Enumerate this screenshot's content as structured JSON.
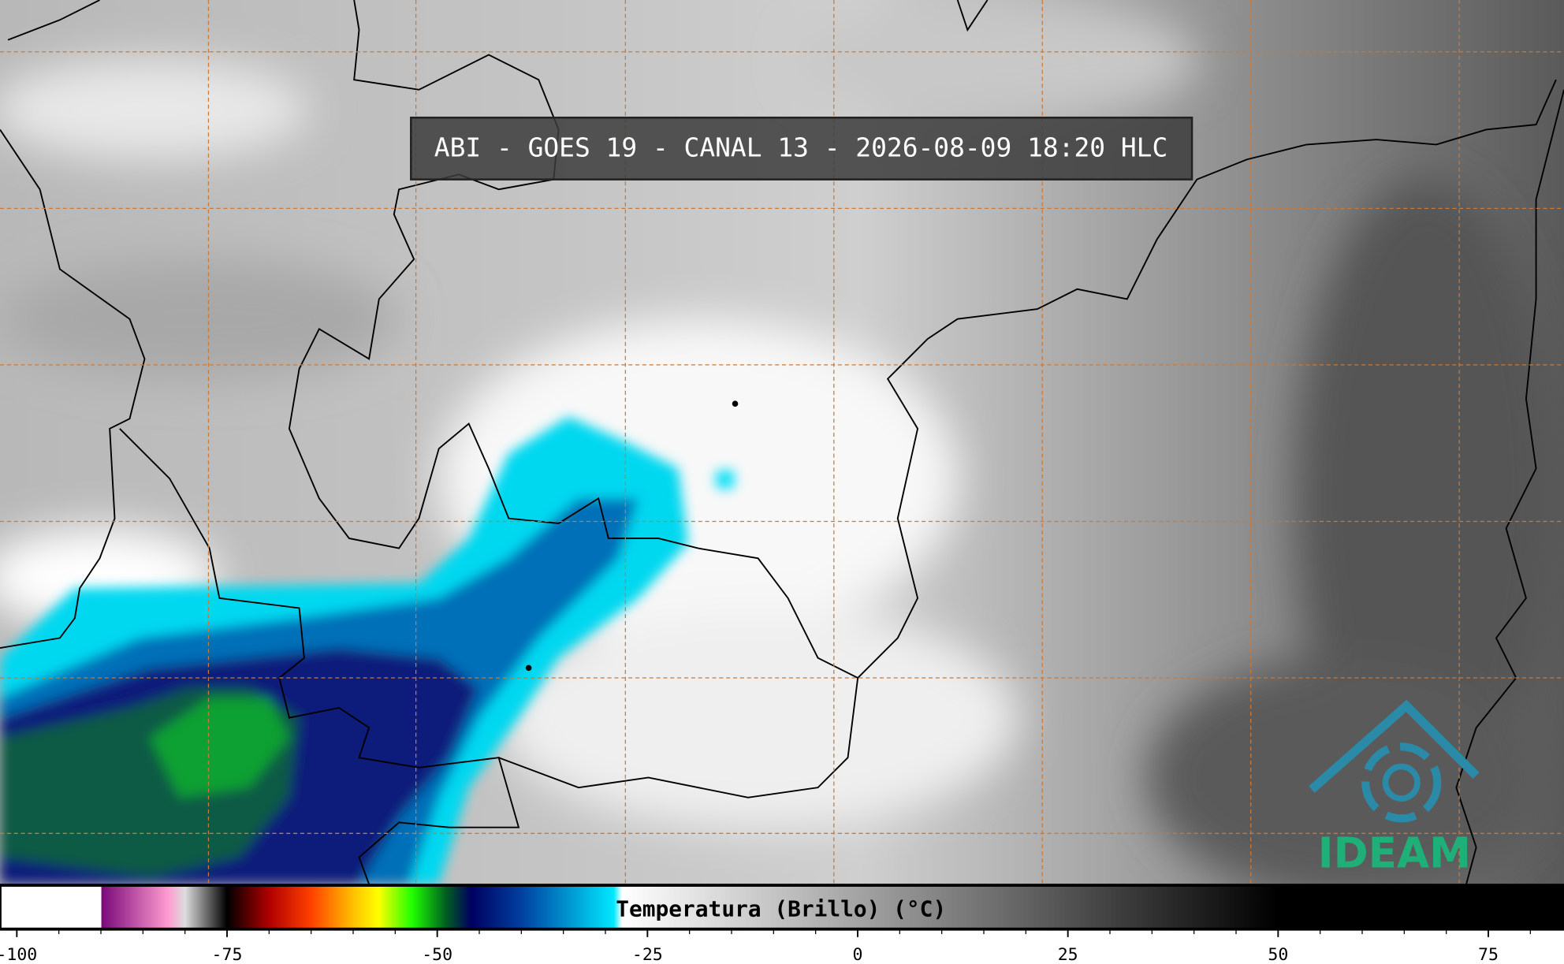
{
  "header": {
    "title": "ABI - GOES 19 - CANAL 13 - 2026-08-09 18:20 HLC"
  },
  "logo": {
    "text": "IDEAM"
  },
  "colorbar": {
    "label": "Temperatura (Brillo) (°C)",
    "lim": [
      -102,
      84
    ],
    "ticks": [
      -100,
      -75,
      -50,
      -25,
      0,
      25,
      50,
      75
    ],
    "minor_ticks": [
      -95,
      -90,
      -85,
      -80,
      -70,
      -65,
      -60,
      -55,
      -45,
      -40,
      -35,
      -30,
      -20,
      -15,
      -10,
      -5,
      5,
      10,
      15,
      20,
      30,
      35,
      40,
      45,
      55,
      60,
      65,
      70,
      80
    ],
    "stops": [
      {
        "value": -102,
        "color": "#ffffff"
      },
      {
        "value": -90,
        "color": "#ffffff"
      },
      {
        "value": -89.9,
        "color": "#7a0a7a"
      },
      {
        "value": -82,
        "color": "#ff9ad0"
      },
      {
        "value": -80,
        "color": "#dddddd"
      },
      {
        "value": -75,
        "color": "#000000"
      },
      {
        "value": -70,
        "color": "#b00000"
      },
      {
        "value": -65,
        "color": "#ff4000"
      },
      {
        "value": -60,
        "color": "#ffc000"
      },
      {
        "value": -57,
        "color": "#ffff00"
      },
      {
        "value": -53,
        "color": "#20ff00"
      },
      {
        "value": -49,
        "color": "#006020"
      },
      {
        "value": -46,
        "color": "#000060"
      },
      {
        "value": -40,
        "color": "#0040a0"
      },
      {
        "value": -29,
        "color": "#00e8ff"
      },
      {
        "value": -28,
        "color": "#ffffff"
      },
      {
        "value": 50,
        "color": "#000000"
      },
      {
        "value": 84,
        "color": "#000000"
      }
    ]
  }
}
